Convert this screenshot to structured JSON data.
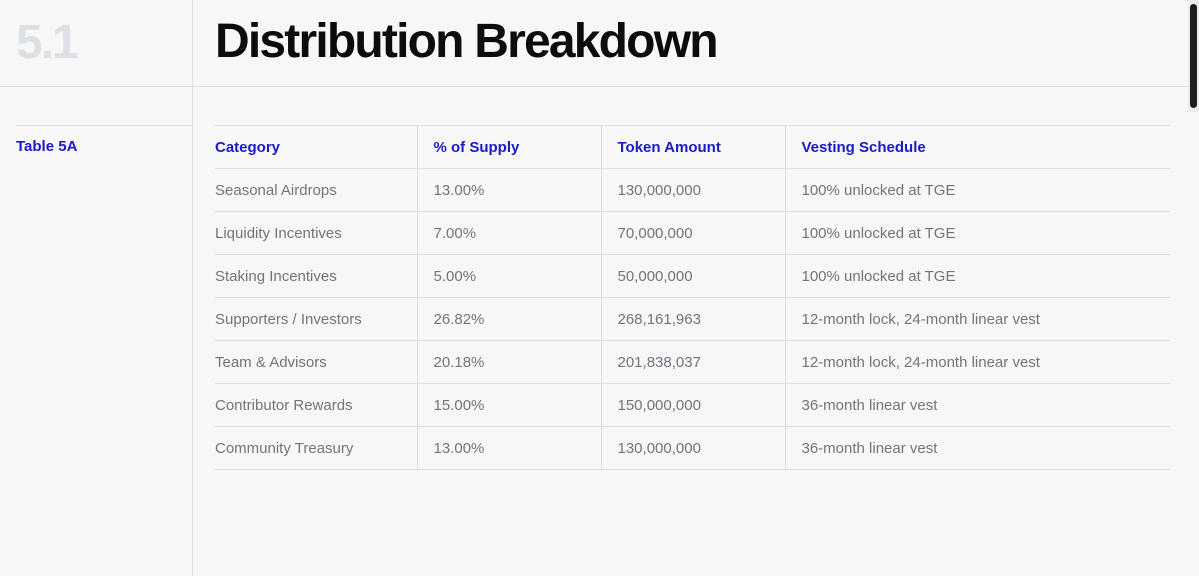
{
  "section": {
    "number": "5.1",
    "title": "Distribution Breakdown"
  },
  "table_label": "Table 5A",
  "table": {
    "headers": [
      "Category",
      "% of Supply",
      "Token Amount",
      "Vesting Schedule"
    ],
    "rows": [
      [
        "Seasonal Airdrops",
        "13.00%",
        "130,000,000",
        "100% unlocked at TGE"
      ],
      [
        "Liquidity Incentives",
        "7.00%",
        "70,000,000",
        "100% unlocked at TGE"
      ],
      [
        "Staking Incentives",
        "5.00%",
        "50,000,000",
        "100% unlocked at TGE"
      ],
      [
        "Supporters / Investors",
        "26.82%",
        "268,161,963",
        "12-month lock, 24-month linear vest"
      ],
      [
        "Team & Advisors",
        "20.18%",
        "201,838,037",
        "12-month lock, 24-month linear vest"
      ],
      [
        "Contributor Rewards",
        "15.00%",
        "150,000,000",
        "36-month linear vest"
      ],
      [
        "Community Treasury",
        "13.00%",
        "130,000,000",
        "36-month linear vest"
      ]
    ]
  },
  "colors": {
    "accent": "#1a1ac9",
    "title": "#0c0c0c",
    "section_number": "#dde1e5",
    "cell_text": "#6f757c",
    "background": "#f7f7f7",
    "rule": "#dedede"
  }
}
